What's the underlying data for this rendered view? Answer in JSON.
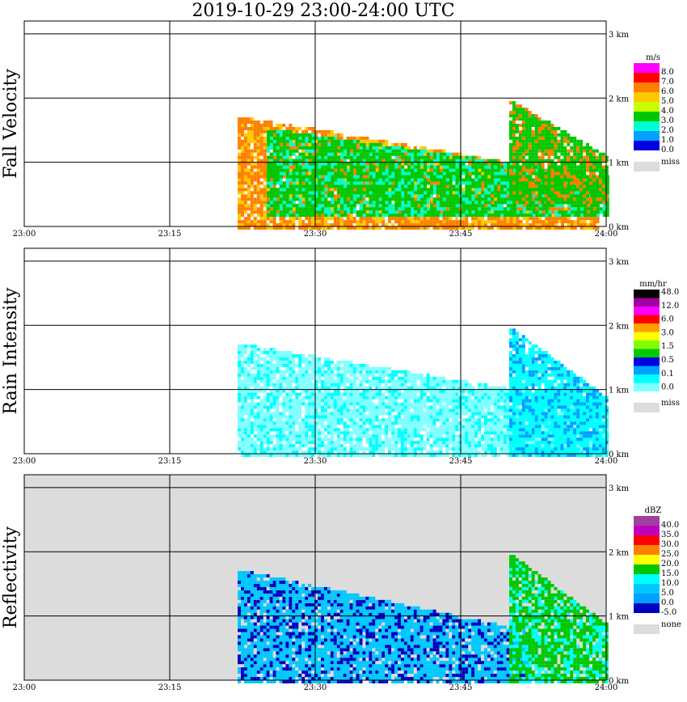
{
  "title": "2019-10-29   23:00-24:00 UTC",
  "x_tick_labels": [
    "23:00",
    "23:15",
    "23:30",
    "23:45",
    "24:00"
  ],
  "y_tick_labels": [
    "0 km",
    "1 km",
    "2 km",
    "3 km"
  ],
  "chart_data": [
    {
      "type": "heatmap",
      "ylabel": "Fall Velocity",
      "x_range": [
        "23:00",
        "24:00"
      ],
      "y_range_km": [
        0,
        3.2
      ],
      "legend": {
        "unit": "m/s",
        "labels": [
          "8.0",
          "7.0",
          "6.0",
          "5.0",
          "4.0",
          "3.0",
          "2.0",
          "1.0",
          "0.0"
        ],
        "colors": [
          "#ff00ff",
          "#ff0000",
          "#ff8000",
          "#ffc800",
          "#c8ff00",
          "#00c800",
          "#00ffd0",
          "#00a0ff",
          "#0000e0"
        ],
        "missing_label": "miss",
        "missing_color": "#dcdcdc"
      },
      "background": "#ffffff",
      "echo_bands": [
        {
          "start": "23:22",
          "top_km": 1.75,
          "base_km": 0.0,
          "end": "23:59",
          "dominant": "#ff8000",
          "secondary": "#ffc800"
        },
        {
          "start": "23:25",
          "top_km": 1.55,
          "base_km": 0.2,
          "end": "24:00",
          "dominant": "#00c800",
          "secondary": "#00ffd0"
        },
        {
          "start": "23:50",
          "top_km": 2.0,
          "base_km": 0.4,
          "end": "24:00",
          "dominant": "#00c800",
          "secondary": "#ff8000"
        }
      ]
    },
    {
      "type": "heatmap",
      "ylabel": "Rain Intensity",
      "x_range": [
        "23:00",
        "24:00"
      ],
      "y_range_km": [
        0,
        3.2
      ],
      "legend": {
        "unit": "mm/hr",
        "labels": [
          "48.0",
          "12.0",
          "6.0",
          "3.0",
          "1.5",
          "0.5",
          "0.1",
          "0.0"
        ],
        "colors": [
          "#000000",
          "#a000a0",
          "#ff00ff",
          "#ff0000",
          "#ffa000",
          "#ffff00",
          "#80ff00",
          "#00c800",
          "#0000e0",
          "#00a0ff",
          "#00ffff",
          "#80ffff"
        ],
        "missing_label": "miss",
        "missing_color": "#dcdcdc"
      },
      "background": "#ffffff",
      "echo_bands": [
        {
          "start": "23:22",
          "top_km": 1.75,
          "base_km": 0.0,
          "end": "24:00",
          "dominant": "#80ffff",
          "secondary": "#00ffff"
        },
        {
          "start": "23:50",
          "top_km": 2.0,
          "base_km": 0.0,
          "end": "24:00",
          "dominant": "#00ffff",
          "secondary": "#00a0ff"
        }
      ]
    },
    {
      "type": "heatmap",
      "ylabel": "Reflectivity",
      "x_range": [
        "23:00",
        "24:00"
      ],
      "y_range_km": [
        0,
        3.2
      ],
      "legend": {
        "unit": "dBZ",
        "labels": [
          "40.0",
          "35.0",
          "30.0",
          "25.0",
          "20.0",
          "15.0",
          "10.0",
          "5.0",
          "0.0",
          "-5.0"
        ],
        "colors": [
          "#a040a0",
          "#c000c0",
          "#ff0000",
          "#ff8000",
          "#ffff00",
          "#00c800",
          "#00ffff",
          "#00c8ff",
          "#00a0ff",
          "#0000c0"
        ],
        "missing_label": "none",
        "missing_color": "#dcdcdc"
      },
      "background": "#dcdcdc",
      "echo_bands": [
        {
          "start": "23:22",
          "top_km": 1.75,
          "base_km": 0.0,
          "end": "23:52",
          "dominant": "#00c8ff",
          "secondary": "#0000c0"
        },
        {
          "start": "23:50",
          "top_km": 2.0,
          "base_km": 0.0,
          "end": "24:00",
          "dominant": "#00c800",
          "secondary": "#00ffff"
        }
      ]
    }
  ]
}
